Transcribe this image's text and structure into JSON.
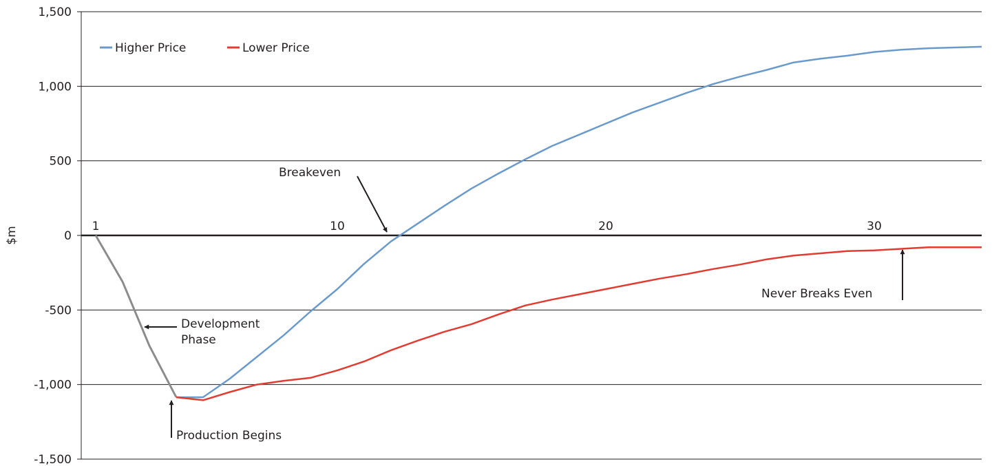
{
  "chart_data": {
    "type": "line",
    "title": "",
    "xlabel": "",
    "ylabel": "$m",
    "xlim": [
      1,
      34
    ],
    "ylim": [
      -1500,
      1500
    ],
    "y_ticks": [
      1500,
      1000,
      500,
      0,
      -500,
      -1000,
      -1500
    ],
    "y_tick_labels": [
      "1,500",
      "1,000",
      "500",
      "0",
      "-500",
      "-1,000",
      "-1,500"
    ],
    "x_ticks": [
      1,
      10,
      20,
      30
    ],
    "x_tick_labels": [
      "1",
      "10",
      "20",
      "30"
    ],
    "grid": true,
    "legend_position": "top-left",
    "colors": {
      "development": "#8c8c8c",
      "higher": "#6a9acb",
      "lower": "#e03c31",
      "grid": "#231f20",
      "text": "#231f20"
    },
    "development": {
      "x": [
        1,
        2,
        3,
        4
      ],
      "values": [
        0,
        -310,
        -740,
        -1085
      ]
    },
    "series": [
      {
        "name": "Higher Price",
        "x": [
          4,
          5,
          6,
          7,
          8,
          9,
          10,
          11,
          12,
          13,
          14,
          15,
          16,
          17,
          18,
          19,
          20,
          21,
          22,
          23,
          24,
          25,
          26,
          27,
          28,
          29,
          30,
          31,
          32,
          33,
          34
        ],
        "values": [
          -1085,
          -1085,
          -960,
          -815,
          -670,
          -510,
          -360,
          -190,
          -40,
          80,
          200,
          315,
          415,
          510,
          600,
          675,
          750,
          825,
          890,
          955,
          1015,
          1065,
          1110,
          1160,
          1185,
          1205,
          1230,
          1245,
          1255,
          1260,
          1265
        ]
      },
      {
        "name": "Lower Price",
        "x": [
          4,
          5,
          6,
          7,
          8,
          9,
          10,
          11,
          12,
          13,
          14,
          15,
          16,
          17,
          18,
          19,
          20,
          21,
          22,
          23,
          24,
          25,
          26,
          27,
          28,
          29,
          30,
          31,
          32,
          33,
          34
        ],
        "values": [
          -1085,
          -1105,
          -1050,
          -1000,
          -975,
          -955,
          -905,
          -845,
          -770,
          -705,
          -645,
          -595,
          -530,
          -470,
          -430,
          -395,
          -360,
          -325,
          -290,
          -260,
          -225,
          -195,
          -160,
          -135,
          -120,
          -105,
          -100,
          -90,
          -80,
          -80,
          -80
        ]
      }
    ],
    "annotations": {
      "breakeven": {
        "text": "Breakeven",
        "x": 11.3,
        "y": 0
      },
      "development": {
        "line1": "Development",
        "line2": "Phase",
        "x": 2.8,
        "y": -615
      },
      "production": {
        "text": "Production Begins",
        "x": 4,
        "y": -1085
      },
      "never": {
        "text": "Never Breaks Even",
        "x": 31,
        "y": -80
      }
    }
  }
}
